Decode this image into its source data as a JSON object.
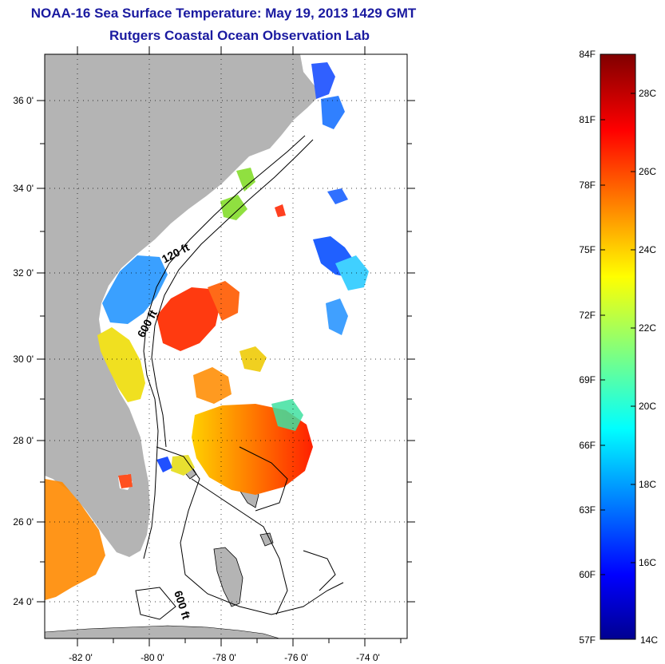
{
  "title": "NOAA-16 Sea Surface Temperature:  May 19, 2013 1429 GMT",
  "subtitle": "Rutgers Coastal Ocean Observation Lab",
  "map": {
    "lat_ticks": [
      "36 0'",
      "34 0'",
      "32 0'",
      "30 0'",
      "28 0'",
      "26 0'",
      "24 0'"
    ],
    "lon_ticks": [
      "-82 0'",
      "-80 0'",
      "-78 0'",
      "-76 0'",
      "-74 0'"
    ],
    "contour_labels": [
      "120 ft",
      "600 ft",
      "600 ft"
    ],
    "land_color": "#b4b4b4",
    "ocean_color": "#ffffff"
  },
  "colorbar": {
    "fahrenheit_labels": [
      "84F",
      "81F",
      "78F",
      "75F",
      "72F",
      "69F",
      "66F",
      "63F",
      "60F",
      "57F"
    ],
    "celsius_labels": [
      "28C",
      "26C",
      "24C",
      "22C",
      "20C",
      "18C",
      "16C",
      "14C"
    ],
    "min_c": 14,
    "max_c": 29
  }
}
